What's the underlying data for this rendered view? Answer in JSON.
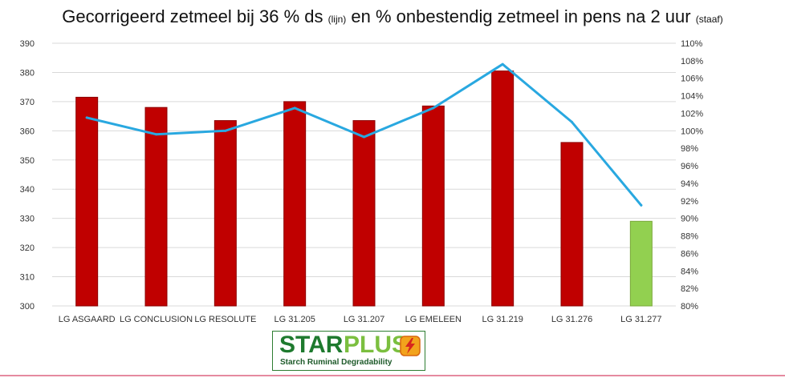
{
  "header": {
    "title_main_1": "Gecorrigeerd zetmeel bij 36 % ds ",
    "title_small_1": "(lijn)",
    "title_main_2": " en % onbestendig zetmeel in pens na 2 uur ",
    "title_small_2": "(staaf)"
  },
  "logo": {
    "word_a": "STAR",
    "word_b": "PLUS",
    "tagline": "Starch Ruminal Degradability",
    "icon": "lightning-badge-icon"
  },
  "colors": {
    "bar_default": "#c00000",
    "bar_highlight": "#92d050",
    "line": "#29a8e0",
    "grid": "#d9d9d9"
  },
  "chart_data": {
    "type": "bar",
    "title": "Gecorrigeerd zetmeel bij 36 % ds (lijn) en % onbestendig zetmeel in pens na 2 uur (staaf)",
    "categories": [
      "LG ASGAARD",
      "LG CONCLUSION",
      "LG RESOLUTE",
      "LG 31.205",
      "LG 31.207",
      "LG EMELEEN",
      "LG 31.219",
      "LG 31.276",
      "LG 31.277"
    ],
    "series": [
      {
        "type": "bar",
        "axis": "left",
        "values": [
          371.5,
          368,
          363.5,
          370,
          363.5,
          368.5,
          380.5,
          356,
          329
        ],
        "highlight_index": 8
      },
      {
        "type": "line",
        "axis": "right",
        "values": [
          101.5,
          99.6,
          100,
          102.6,
          99.3,
          102.6,
          107.6,
          101,
          91.5
        ]
      }
    ],
    "y_left": {
      "min": 300,
      "max": 390,
      "step": 10,
      "ticks": [
        "300",
        "310",
        "320",
        "330",
        "340",
        "350",
        "360",
        "370",
        "380",
        "390"
      ]
    },
    "y_right": {
      "min": 80,
      "max": 110,
      "step": 2,
      "ticks": [
        "80%",
        "82%",
        "84%",
        "86%",
        "88%",
        "90%",
        "92%",
        "94%",
        "96%",
        "98%",
        "100%",
        "102%",
        "104%",
        "106%",
        "108%",
        "110%"
      ]
    },
    "grid": true,
    "legend": "none"
  }
}
